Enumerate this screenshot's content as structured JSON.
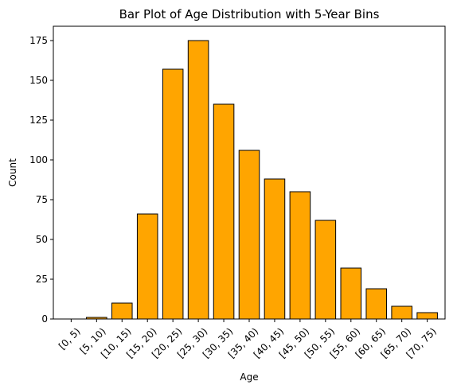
{
  "chart_data": {
    "type": "bar",
    "title": "Bar Plot of Age Distribution with 5-Year Bins",
    "xlabel": "Age",
    "ylabel": "Count",
    "categories": [
      "[0, 5)",
      "[5, 10)",
      "[10, 15)",
      "[15, 20)",
      "[20, 25)",
      "[25, 30)",
      "[30, 35)",
      "[35, 40)",
      "[40, 45)",
      "[45, 50)",
      "[50, 55)",
      "[55, 60)",
      "[60, 65)",
      "[65, 70)",
      "[70, 75)"
    ],
    "values": [
      0,
      1,
      10,
      66,
      157,
      175,
      135,
      106,
      88,
      80,
      62,
      32,
      19,
      8,
      4
    ],
    "ylim": [
      0,
      184
    ],
    "yticks": [
      0,
      25,
      50,
      75,
      100,
      125,
      150,
      175
    ],
    "grid": false,
    "legend": "none",
    "colors": {
      "bar_fill": "#ffa500",
      "bar_edge": "#000000"
    }
  }
}
